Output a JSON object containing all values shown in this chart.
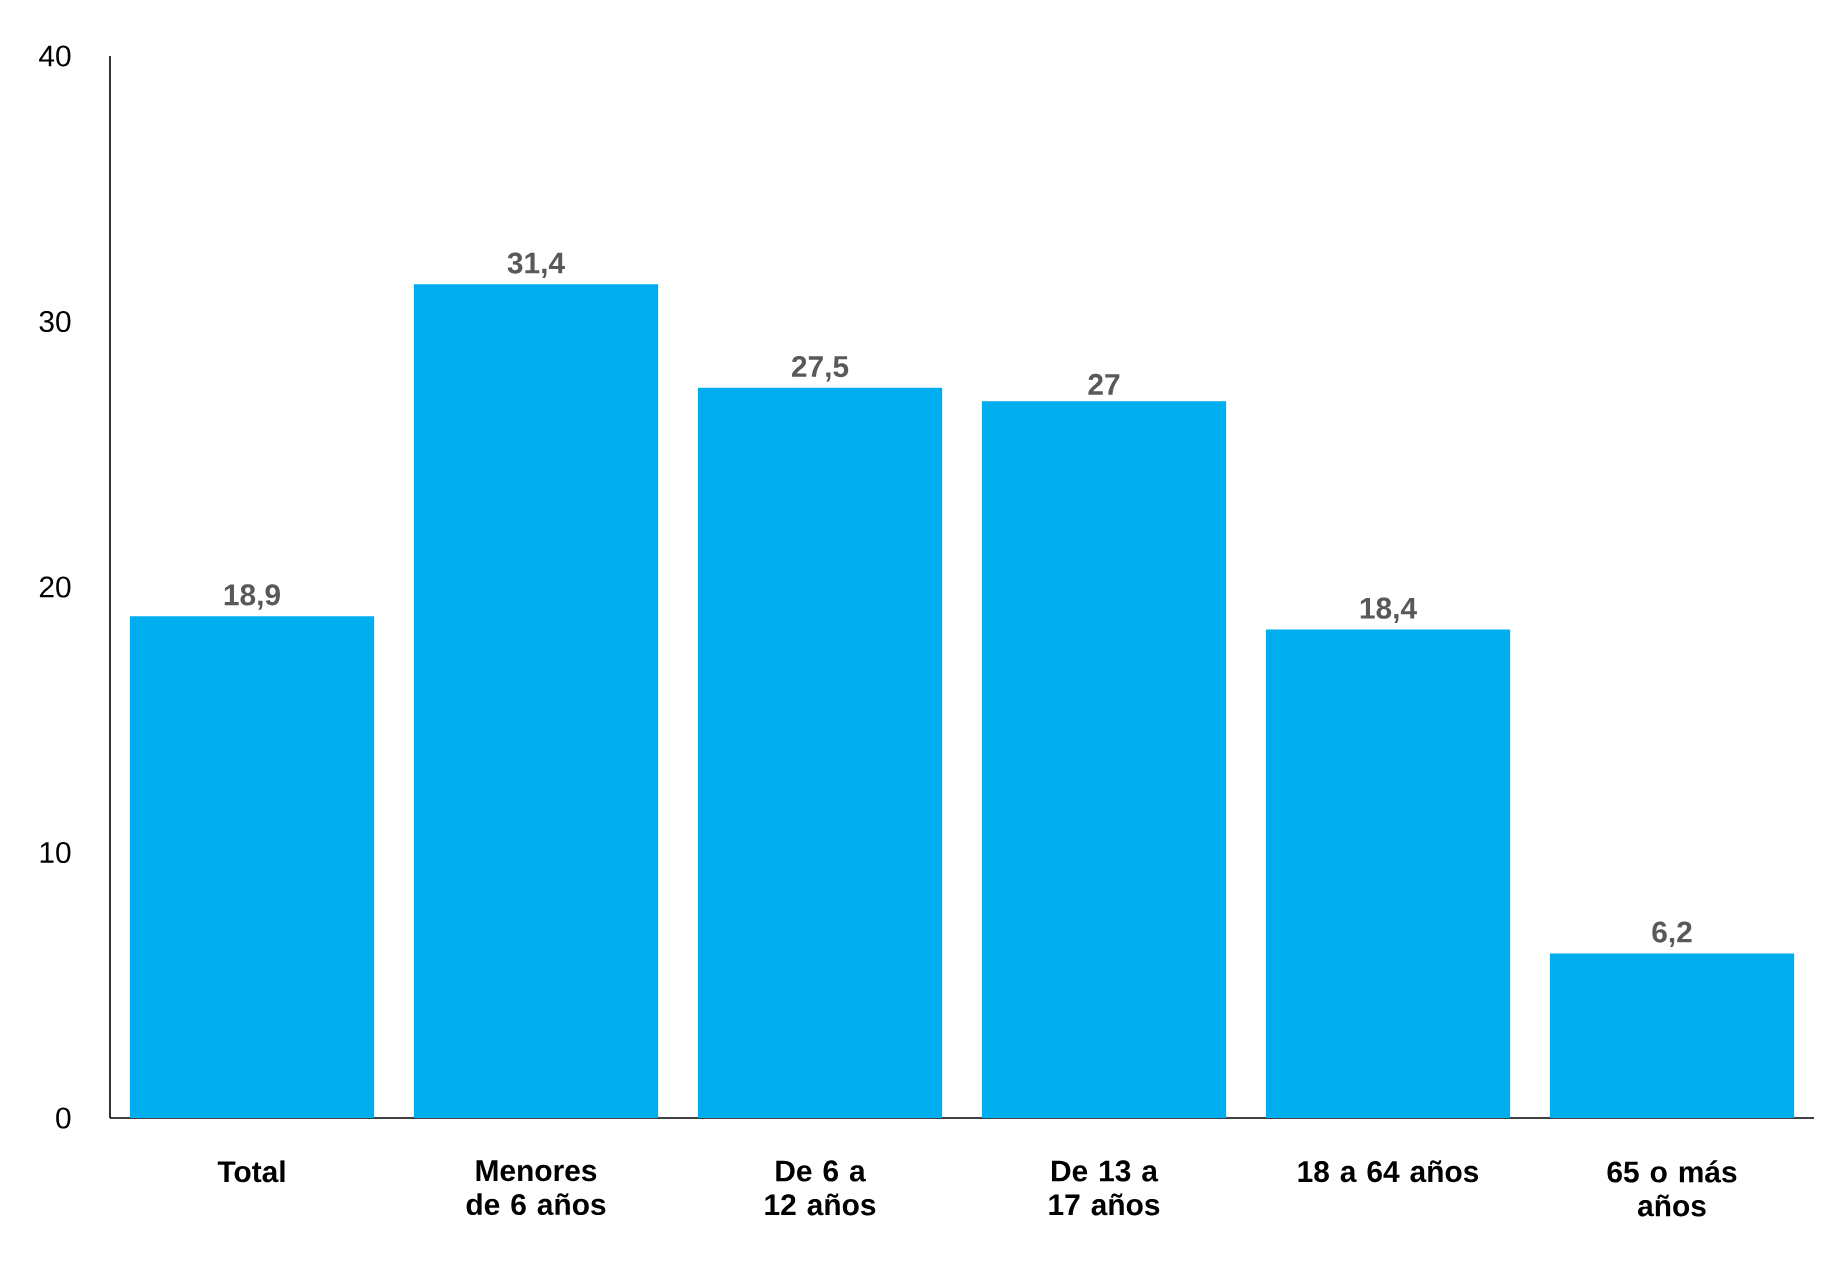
{
  "chart_data": {
    "type": "bar",
    "categories": [
      "Total",
      "Menores de 6 años",
      "De 6 a 12 años",
      "De 13 a 17 años",
      "18 a 64 años",
      "65 o más años"
    ],
    "values": [
      18.9,
      31.4,
      27.5,
      27,
      18.4,
      6.2
    ],
    "value_labels": [
      "18,9",
      "31,4",
      "27,5",
      "27",
      "18,4",
      "6,2"
    ],
    "color": "#00adee",
    "ylim": [
      0,
      40
    ],
    "yticks": [
      0,
      10,
      20,
      30,
      40
    ],
    "grid": false
  }
}
